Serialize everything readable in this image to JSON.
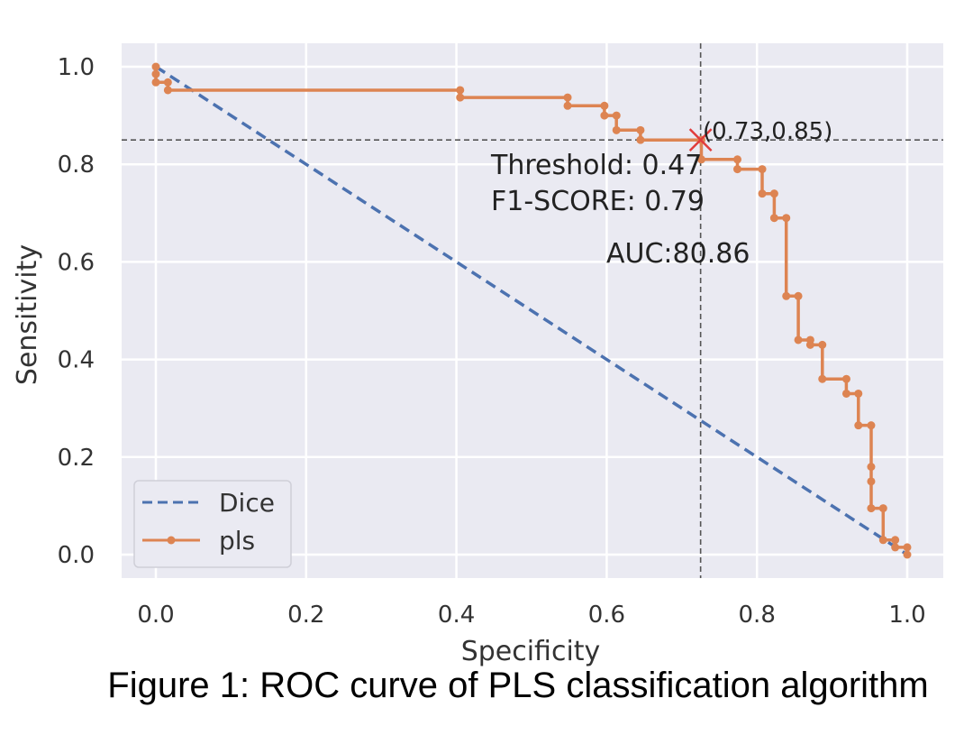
{
  "caption": "Figure 1: ROC curve of PLS classification algorithm",
  "chart_data": {
    "type": "line",
    "xlabel": "Specificity",
    "ylabel": "Sensitivity",
    "xlim": [
      -0.05,
      1.05
    ],
    "ylim": [
      -0.05,
      1.05
    ],
    "xticks": [
      "0.0",
      "0.2",
      "0.4",
      "0.6",
      "0.8",
      "1.0"
    ],
    "yticks": [
      "0.0",
      "0.2",
      "0.4",
      "0.6",
      "0.8",
      "1.0"
    ],
    "grid": true,
    "legend_position": "lower-left",
    "series": [
      {
        "name": "Dice",
        "style": "dashed",
        "color": "#4c72b0",
        "x": [
          0,
          1
        ],
        "y": [
          1,
          0
        ]
      },
      {
        "name": "pls",
        "style": "step-marker",
        "color": "#dd8452",
        "x": [
          0.0,
          0.0,
          0.0,
          0.016,
          0.016,
          0.405,
          0.405,
          0.548,
          0.548,
          0.597,
          0.597,
          0.613,
          0.613,
          0.645,
          0.645,
          0.726,
          0.726,
          0.774,
          0.774,
          0.807,
          0.807,
          0.823,
          0.823,
          0.839,
          0.839,
          0.855,
          0.855,
          0.871,
          0.871,
          0.887,
          0.887,
          0.919,
          0.919,
          0.935,
          0.935,
          0.952,
          0.952,
          0.952,
          0.952,
          0.968,
          0.968,
          0.984,
          0.984,
          1.0,
          1.0
        ],
        "y": [
          1.0,
          0.985,
          0.968,
          0.968,
          0.952,
          0.952,
          0.937,
          0.937,
          0.92,
          0.92,
          0.9,
          0.9,
          0.87,
          0.87,
          0.85,
          0.85,
          0.81,
          0.81,
          0.79,
          0.79,
          0.74,
          0.74,
          0.69,
          0.69,
          0.53,
          0.53,
          0.44,
          0.44,
          0.43,
          0.43,
          0.36,
          0.36,
          0.33,
          0.33,
          0.265,
          0.265,
          0.18,
          0.15,
          0.095,
          0.095,
          0.03,
          0.03,
          0.015,
          0.015,
          0.0
        ]
      }
    ],
    "operating_point": {
      "x": 0.725,
      "y": 0.85,
      "marker": "x",
      "color": "#e03c3c"
    },
    "annotations": {
      "point_label": "(0.73,0.85)",
      "threshold": "Threshold: 0.47",
      "f1": "F1-SCORE: 0.79",
      "auc": "AUC:80.86"
    },
    "colors": {
      "plot_background": "#eaeaf2",
      "grid": "#ffffff",
      "crosshair": "#555555"
    }
  }
}
